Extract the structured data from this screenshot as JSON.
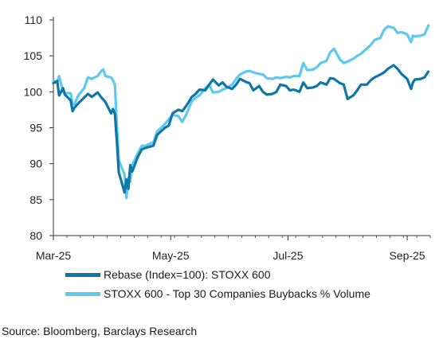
{
  "chart_data": {
    "type": "line",
    "title": "",
    "xlabel": "",
    "ylabel": "",
    "ylim": [
      80,
      110
    ],
    "yticks": [
      "80",
      "85",
      "90",
      "95",
      "100",
      "105",
      "110"
    ],
    "xlim": [
      "2025-03-01",
      "2025-09-13"
    ],
    "xticks": [
      {
        "date": "2025-03-01",
        "label": "Mar-25"
      },
      {
        "date": "2025-05-01",
        "label": "May-25"
      },
      {
        "date": "2025-07-01",
        "label": "Jul-25"
      },
      {
        "date": "2025-09-01",
        "label": "Sep-25"
      }
    ],
    "grid": false,
    "legend_position": "bottom",
    "series": [
      {
        "name": "Rebase (Index=100):  STOXX 600",
        "color": "#0f77a6",
        "points": [
          [
            "2025-03-01",
            101.2
          ],
          [
            "2025-03-03",
            101.5
          ],
          [
            "2025-03-04",
            99.5
          ],
          [
            "2025-03-06",
            100.5
          ],
          [
            "2025-03-07",
            99.6
          ],
          [
            "2025-03-10",
            98.8
          ],
          [
            "2025-03-11",
            97.3
          ],
          [
            "2025-03-12",
            97.8
          ],
          [
            "2025-03-14",
            98.4
          ],
          [
            "2025-03-17",
            99.2
          ],
          [
            "2025-03-19",
            99.7
          ],
          [
            "2025-03-21",
            99.3
          ],
          [
            "2025-03-24",
            99.9
          ],
          [
            "2025-03-26",
            99.2
          ],
          [
            "2025-03-28",
            98.6
          ],
          [
            "2025-03-31",
            97.0
          ],
          [
            "2025-04-01",
            97.6
          ],
          [
            "2025-04-02",
            96.9
          ],
          [
            "2025-04-03",
            93.2
          ],
          [
            "2025-04-04",
            88.8
          ],
          [
            "2025-04-07",
            86.0
          ],
          [
            "2025-04-08",
            87.8
          ],
          [
            "2025-04-09",
            86.5
          ],
          [
            "2025-04-10",
            89.8
          ],
          [
            "2025-04-11",
            88.9
          ],
          [
            "2025-04-14",
            91.0
          ],
          [
            "2025-04-16",
            92.0
          ],
          [
            "2025-04-18",
            92.2
          ],
          [
            "2025-04-22",
            92.5
          ],
          [
            "2025-04-24",
            94.0
          ],
          [
            "2025-04-28",
            95.0
          ],
          [
            "2025-04-30",
            95.3
          ],
          [
            "2025-05-02",
            97.0
          ],
          [
            "2025-05-05",
            97.5
          ],
          [
            "2025-05-07",
            97.3
          ],
          [
            "2025-05-09",
            98.0
          ],
          [
            "2025-05-12",
            99.3
          ],
          [
            "2025-05-14",
            99.7
          ],
          [
            "2025-05-16",
            100.3
          ],
          [
            "2025-05-19",
            100.2
          ],
          [
            "2025-05-21",
            101.0
          ],
          [
            "2025-05-23",
            101.7
          ],
          [
            "2025-05-26",
            100.9
          ],
          [
            "2025-05-28",
            101.3
          ],
          [
            "2025-05-30",
            100.7
          ],
          [
            "2025-06-02",
            100.4
          ],
          [
            "2025-06-04",
            101.0
          ],
          [
            "2025-06-06",
            101.8
          ],
          [
            "2025-06-09",
            101.4
          ],
          [
            "2025-06-11",
            101.2
          ],
          [
            "2025-06-13",
            100.2
          ],
          [
            "2025-06-16",
            100.8
          ],
          [
            "2025-06-18",
            100.0
          ],
          [
            "2025-06-20",
            99.6
          ],
          [
            "2025-06-23",
            99.7
          ],
          [
            "2025-06-25",
            100.0
          ],
          [
            "2025-06-27",
            101.0
          ],
          [
            "2025-06-30",
            100.8
          ],
          [
            "2025-07-02",
            100.2
          ],
          [
            "2025-07-04",
            100.3
          ],
          [
            "2025-07-07",
            100.0
          ],
          [
            "2025-07-09",
            101.3
          ],
          [
            "2025-07-11",
            100.5
          ],
          [
            "2025-07-14",
            100.6
          ],
          [
            "2025-07-16",
            100.8
          ],
          [
            "2025-07-18",
            101.3
          ],
          [
            "2025-07-21",
            101.0
          ],
          [
            "2025-07-23",
            101.9
          ],
          [
            "2025-07-25",
            101.8
          ],
          [
            "2025-07-28",
            101.2
          ],
          [
            "2025-07-30",
            101.0
          ],
          [
            "2025-08-01",
            99.0
          ],
          [
            "2025-08-04",
            99.5
          ],
          [
            "2025-08-06",
            100.2
          ],
          [
            "2025-08-08",
            101.0
          ],
          [
            "2025-08-11",
            101.0
          ],
          [
            "2025-08-13",
            101.6
          ],
          [
            "2025-08-15",
            102.0
          ],
          [
            "2025-08-18",
            102.4
          ],
          [
            "2025-08-20",
            102.7
          ],
          [
            "2025-08-22",
            103.2
          ],
          [
            "2025-08-25",
            103.7
          ],
          [
            "2025-08-27",
            103.2
          ],
          [
            "2025-08-29",
            102.5
          ],
          [
            "2025-09-01",
            101.8
          ],
          [
            "2025-09-03",
            100.4
          ],
          [
            "2025-09-04",
            101.3
          ],
          [
            "2025-09-05",
            101.7
          ],
          [
            "2025-09-08",
            101.8
          ],
          [
            "2025-09-10",
            102.0
          ],
          [
            "2025-09-12",
            102.8
          ]
        ]
      },
      {
        "name": "STOXX 600 - Top 30 Companies Buybacks % Volume",
        "color": "#5ec8ee",
        "points": [
          [
            "2025-03-01",
            101.5
          ],
          [
            "2025-03-03",
            101.3
          ],
          [
            "2025-03-04",
            102.2
          ],
          [
            "2025-03-06",
            100.0
          ],
          [
            "2025-03-07",
            99.8
          ],
          [
            "2025-03-10",
            99.8
          ],
          [
            "2025-03-11",
            98.2
          ],
          [
            "2025-03-12",
            98.3
          ],
          [
            "2025-03-14",
            99.5
          ],
          [
            "2025-03-17",
            100.5
          ],
          [
            "2025-03-19",
            102.0
          ],
          [
            "2025-03-21",
            101.8
          ],
          [
            "2025-03-24",
            102.2
          ],
          [
            "2025-03-26",
            102.9
          ],
          [
            "2025-03-27",
            103.1
          ],
          [
            "2025-03-28",
            102.2
          ],
          [
            "2025-03-31",
            102.0
          ],
          [
            "2025-04-01",
            101.6
          ],
          [
            "2025-04-02",
            101.0
          ],
          [
            "2025-04-03",
            95.5
          ],
          [
            "2025-04-04",
            90.5
          ],
          [
            "2025-04-07",
            88.5
          ],
          [
            "2025-04-08",
            85.2
          ],
          [
            "2025-04-09",
            88.0
          ],
          [
            "2025-04-10",
            87.5
          ],
          [
            "2025-04-11",
            89.8
          ],
          [
            "2025-04-14",
            91.5
          ],
          [
            "2025-04-16",
            92.5
          ],
          [
            "2025-04-18",
            92.5
          ],
          [
            "2025-04-22",
            93.0
          ],
          [
            "2025-04-24",
            94.5
          ],
          [
            "2025-04-28",
            95.5
          ],
          [
            "2025-04-30",
            96.2
          ],
          [
            "2025-05-02",
            96.8
          ],
          [
            "2025-05-05",
            96.6
          ],
          [
            "2025-05-07",
            95.8
          ],
          [
            "2025-05-09",
            96.8
          ],
          [
            "2025-05-12",
            98.7
          ],
          [
            "2025-05-14",
            99.2
          ],
          [
            "2025-05-16",
            99.5
          ],
          [
            "2025-05-19",
            100.5
          ],
          [
            "2025-05-21",
            101.0
          ],
          [
            "2025-05-23",
            99.9
          ],
          [
            "2025-05-26",
            100.0
          ],
          [
            "2025-05-28",
            100.3
          ],
          [
            "2025-05-30",
            100.5
          ],
          [
            "2025-06-02",
            101.0
          ],
          [
            "2025-06-04",
            101.8
          ],
          [
            "2025-06-06",
            102.4
          ],
          [
            "2025-06-09",
            102.8
          ],
          [
            "2025-06-11",
            102.9
          ],
          [
            "2025-06-13",
            102.7
          ],
          [
            "2025-06-16",
            102.5
          ],
          [
            "2025-06-18",
            102.4
          ],
          [
            "2025-06-20",
            101.9
          ],
          [
            "2025-06-23",
            101.8
          ],
          [
            "2025-06-25",
            102.0
          ],
          [
            "2025-06-27",
            101.9
          ],
          [
            "2025-06-30",
            102.1
          ],
          [
            "2025-07-02",
            102.0
          ],
          [
            "2025-07-04",
            102.2
          ],
          [
            "2025-07-07",
            102.2
          ],
          [
            "2025-07-09",
            104.0
          ],
          [
            "2025-07-11",
            103.0
          ],
          [
            "2025-07-14",
            103.1
          ],
          [
            "2025-07-16",
            103.4
          ],
          [
            "2025-07-18",
            104.0
          ],
          [
            "2025-07-21",
            104.3
          ],
          [
            "2025-07-23",
            105.5
          ],
          [
            "2025-07-25",
            106.0
          ],
          [
            "2025-07-28",
            104.5
          ],
          [
            "2025-07-30",
            104.0
          ],
          [
            "2025-08-01",
            104.2
          ],
          [
            "2025-08-04",
            104.6
          ],
          [
            "2025-08-06",
            105.0
          ],
          [
            "2025-08-08",
            105.3
          ],
          [
            "2025-08-11",
            106.0
          ],
          [
            "2025-08-13",
            106.5
          ],
          [
            "2025-08-15",
            107.2
          ],
          [
            "2025-08-18",
            107.5
          ],
          [
            "2025-08-20",
            108.6
          ],
          [
            "2025-08-22",
            109.1
          ],
          [
            "2025-08-25",
            108.9
          ],
          [
            "2025-08-27",
            108.2
          ],
          [
            "2025-08-29",
            108.3
          ],
          [
            "2025-09-01",
            108.0
          ],
          [
            "2025-09-03",
            106.9
          ],
          [
            "2025-09-04",
            107.8
          ],
          [
            "2025-09-05",
            107.7
          ],
          [
            "2025-09-08",
            107.8
          ],
          [
            "2025-09-10",
            108.0
          ],
          [
            "2025-09-12",
            109.2
          ]
        ]
      }
    ]
  },
  "legend": {
    "item1": "Rebase (Index=100):  STOXX 600",
    "item2": "STOXX 600 - Top 30 Companies Buybacks % Volume"
  },
  "source": "Source: Bloomberg, Barclays Research"
}
